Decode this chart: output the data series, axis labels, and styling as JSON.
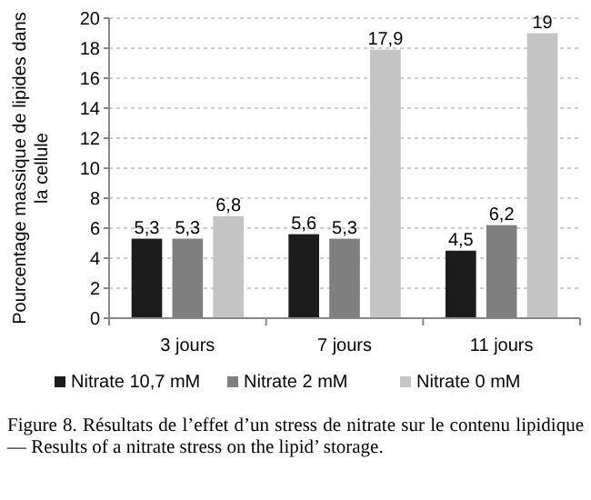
{
  "chart_data": {
    "type": "bar",
    "ylabel": "Pourcentage massique de lipides dans la cellule",
    "categories": [
      "3 jours",
      "7 jours",
      "11 jours"
    ],
    "series": [
      {
        "name": "Nitrate 10,7 mM",
        "color": "#1c1c1c",
        "values": [
          5.3,
          5.6,
          4.5
        ],
        "value_labels": [
          "5,3",
          "5,6",
          "4,5"
        ]
      },
      {
        "name": "Nitrate 2 mM",
        "color": "#7f7f7f",
        "values": [
          5.3,
          5.3,
          6.2
        ],
        "value_labels": [
          "5,3",
          "5,3",
          "6,2"
        ]
      },
      {
        "name": "Nitrate 0 mM",
        "color": "#c4c4c4",
        "values": [
          6.8,
          17.9,
          19
        ],
        "value_labels": [
          "6,8",
          "17,9",
          "19"
        ]
      }
    ],
    "ylim": [
      0,
      20
    ],
    "yticks": [
      0,
      2,
      4,
      6,
      8,
      10,
      12,
      14,
      16,
      18,
      20
    ],
    "grid": "y",
    "legend": "bottom",
    "annotations": [
      "Figure 8. Résultats de l’effet d’un stress de nitrate sur le contenu lipidique — Results of a nitrate stress on the lipid’ storage."
    ]
  }
}
